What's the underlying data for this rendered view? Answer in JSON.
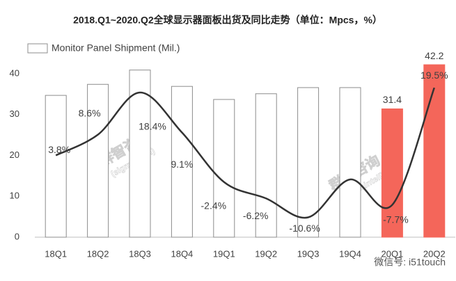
{
  "chart_data": {
    "type": "bar_line",
    "title": "2018.Q1~2020.Q2全球显示器面板出货及同比走势（单位：Mpcs，%）",
    "categories": [
      "18Q1",
      "18Q2",
      "18Q3",
      "18Q4",
      "19Q1",
      "19Q2",
      "19Q3",
      "19Q4",
      "20Q1",
      "20Q2"
    ],
    "series": [
      {
        "name": "Monitor Panel Shipment (Mil.)",
        "type": "bar",
        "color": "#ffffff",
        "colors": [
          "#ffffff",
          "#ffffff",
          "#ffffff",
          "#ffffff",
          "#ffffff",
          "#ffffff",
          "#ffffff",
          "#ffffff",
          "#f4665a",
          "#f4665a"
        ],
        "values": [
          34.7,
          37.4,
          40.9,
          36.9,
          33.7,
          35.1,
          36.6,
          36.6,
          31.4,
          42.2
        ],
        "value_labels": [
          null,
          null,
          null,
          null,
          null,
          null,
          null,
          null,
          "31.4",
          "42.2"
        ]
      },
      {
        "type": "line",
        "axis": "y2",
        "color": "#333333",
        "values": [
          3.8,
          8.6,
          18.4,
          9.1,
          -2.4,
          -6.2,
          -10.6,
          -1.8,
          -7.7,
          19.5
        ],
        "value_labels": [
          "3.8%",
          "8.6%",
          "18.4%",
          "9.1%",
          "-2.4%",
          "-6.2%",
          "-10.6%",
          null,
          "-7.7%",
          "19.5%"
        ]
      }
    ],
    "ylim": [
      0,
      45
    ],
    "yticks": [
      0,
      10,
      20,
      30,
      40
    ],
    "y2lim": [
      -15.2,
      27.5
    ],
    "grid": false,
    "legend": "top-left",
    "watermark": [
      "群智咨询",
      "(sigmaintell)"
    ],
    "footnote": "微信号: i51touch"
  }
}
